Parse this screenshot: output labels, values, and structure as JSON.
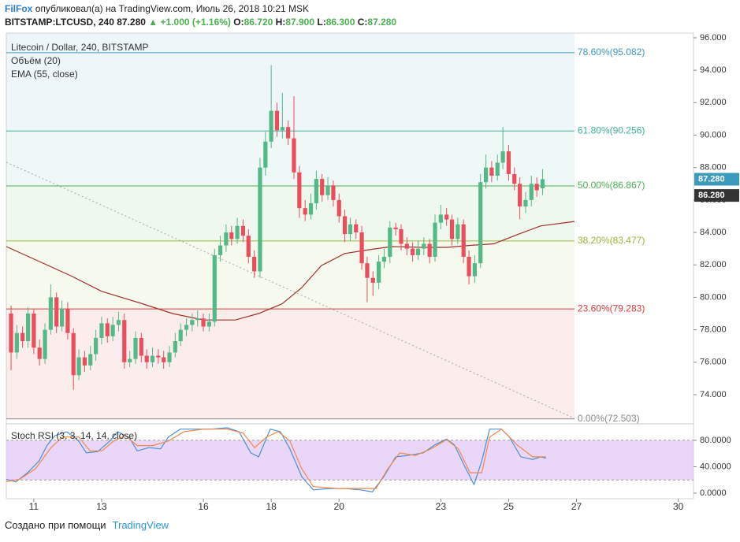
{
  "header": {
    "author": "FilFox",
    "published": "опубликовал(а) на TradingView.com, Июль 26, 2018 10:21 MSK",
    "symbol": "BITSTAMP:LTCUSD, 240",
    "last": "87.280",
    "change": "▲ +1.000 (+1.16%)",
    "ohlc": [
      {
        "label": "O:",
        "value": "86.720"
      },
      {
        "label": "H:",
        "value": "87.900"
      },
      {
        "label": "L:",
        "value": "86.300"
      },
      {
        "label": "C:",
        "value": "87.280"
      }
    ]
  },
  "chart_data": [
    {
      "type": "candlestick",
      "title": "Litecoin / Dollar, 240, BITSTAMP",
      "indicator_labels": [
        "Объём (20)"
      ],
      "up_color": "#53b987",
      "down_color": "#eb4d5c",
      "xlim": [
        10.19,
        30.45
      ],
      "ylim": [
        72.25,
        96.29
      ],
      "yticks": [
        {
          "value": 74,
          "label": "74.000"
        },
        {
          "value": 76,
          "label": "76.000"
        },
        {
          "value": 78,
          "label": "78.000"
        },
        {
          "value": 80,
          "label": "80.000"
        },
        {
          "value": 82,
          "label": "82.000"
        },
        {
          "value": 84,
          "label": "84.000"
        },
        {
          "value": 86,
          "label": "86.000"
        },
        {
          "value": 88,
          "label": "88.000"
        },
        {
          "value": 90,
          "label": "90.000"
        },
        {
          "value": 92,
          "label": "92.000"
        },
        {
          "value": 94,
          "label": "94.000"
        },
        {
          "value": 96,
          "label": "96.000"
        }
      ],
      "x": [
        10.33,
        10.5,
        10.67,
        10.83,
        11,
        11.17,
        11.33,
        11.5,
        11.67,
        11.83,
        12,
        12.17,
        12.33,
        12.5,
        12.67,
        12.83,
        13,
        13.17,
        13.33,
        13.5,
        13.67,
        13.83,
        14,
        14.17,
        14.33,
        14.5,
        14.67,
        14.83,
        15,
        15.17,
        15.33,
        15.5,
        15.67,
        15.83,
        16,
        16.17,
        16.33,
        16.5,
        16.67,
        16.83,
        17,
        17.17,
        17.33,
        17.5,
        17.67,
        17.83,
        18,
        18.17,
        18.33,
        18.5,
        18.67,
        18.83,
        19,
        19.17,
        19.33,
        19.5,
        19.67,
        19.83,
        20,
        20.17,
        20.33,
        20.5,
        20.67,
        20.83,
        21,
        21.17,
        21.33,
        21.5,
        21.67,
        21.83,
        22,
        22.17,
        22.33,
        22.5,
        22.67,
        22.83,
        23,
        23.17,
        23.33,
        23.5,
        23.67,
        23.83,
        24,
        24.17,
        24.33,
        24.5,
        24.67,
        24.83,
        25,
        25.17,
        25.33,
        25.5,
        25.67,
        25.83,
        26
      ],
      "open": [
        79.0,
        76.6,
        77.8,
        77.3,
        79.0,
        76.9,
        76.2,
        78.0,
        80.0,
        78.2,
        79.3,
        77.8,
        75.2,
        76.3,
        75.8,
        76.5,
        77.5,
        78.4,
        77.6,
        78.3,
        78.6,
        76.0,
        76.2,
        77.5,
        76.4,
        76.0,
        76.4,
        76.3,
        76.0,
        76.6,
        77.3,
        78.0,
        78.3,
        78.6,
        78.7,
        78.2,
        78.5,
        82.6,
        83.2,
        84.0,
        83.6,
        84.4,
        83.8,
        82.5,
        81.6,
        88.0,
        89.6,
        91.5,
        90.3,
        90.5,
        89.8,
        87.7,
        85.5,
        85.1,
        85.8,
        87.3,
        86.3,
        86.9,
        86.0,
        85.0,
        83.9,
        84.5,
        84.0,
        82.1,
        81.2,
        80.9,
        82.2,
        82.5,
        84.3,
        84.2,
        83.3,
        83.0,
        82.6,
        83.0,
        83.3,
        82.5,
        84.6,
        85.1,
        84.8,
        83.6,
        84.5,
        82.5,
        81.3,
        82.1,
        87.1,
        88.0,
        87.5,
        88.3,
        89.0,
        87.6,
        87.0,
        85.6,
        86.0,
        87.0,
        86.72
      ],
      "high": [
        79.5,
        78.3,
        78.2,
        79.4,
        79.3,
        77.4,
        78.4,
        80.8,
        80.3,
        79.8,
        79.7,
        78.1,
        76.8,
        76.7,
        77.0,
        78.0,
        78.8,
        78.7,
        78.8,
        79.1,
        79.0,
        76.7,
        77.9,
        77.8,
        76.8,
        76.9,
        76.8,
        76.7,
        77.0,
        77.8,
        78.4,
        78.7,
        79.0,
        79.2,
        79.0,
        79.0,
        83.0,
        83.8,
        84.5,
        84.4,
        84.9,
        84.8,
        84.2,
        82.9,
        88.6,
        90.2,
        94.3,
        92.0,
        92.6,
        90.9,
        92.4,
        88.1,
        86.0,
        86.4,
        87.8,
        87.6,
        87.4,
        87.2,
        86.4,
        85.4,
        84.9,
        84.8,
        84.4,
        82.5,
        81.6,
        82.6,
        83.0,
        84.7,
        84.6,
        84.5,
        83.7,
        83.4,
        83.5,
        83.7,
        83.6,
        85.1,
        85.7,
        85.5,
        85.1,
        84.9,
        84.8,
        82.9,
        82.6,
        87.6,
        88.8,
        88.4,
        88.8,
        90.5,
        89.4,
        88.0,
        87.4,
        86.5,
        87.5,
        87.4,
        87.9
      ],
      "low": [
        75.5,
        76.2,
        76.9,
        76.9,
        76.5,
        75.8,
        75.9,
        77.7,
        77.8,
        77.9,
        77.4,
        74.3,
        74.9,
        75.4,
        75.5,
        76.1,
        77.1,
        77.2,
        77.3,
        77.9,
        75.6,
        75.7,
        75.9,
        76.0,
        75.6,
        75.7,
        75.9,
        75.6,
        75.7,
        76.3,
        77.0,
        77.6,
        77.9,
        78.2,
        77.9,
        77.9,
        78.2,
        82.2,
        82.8,
        83.2,
        83.3,
        83.4,
        82.1,
        81.2,
        81.2,
        87.5,
        89.2,
        89.9,
        89.8,
        89.4,
        87.3,
        84.9,
        84.7,
        84.8,
        85.4,
        85.9,
        86.0,
        85.6,
        84.6,
        83.4,
        83.5,
        83.6,
        81.7,
        79.7,
        80.1,
        80.5,
        81.8,
        82.1,
        83.8,
        82.9,
        82.6,
        82.2,
        82.3,
        82.6,
        82.1,
        82.2,
        84.2,
        84.4,
        83.2,
        83.3,
        82.1,
        80.8,
        80.9,
        81.8,
        86.7,
        87.1,
        87.2,
        87.9,
        87.2,
        86.6,
        84.8,
        85.2,
        85.6,
        86.2,
        86.3
      ],
      "close": [
        76.6,
        77.8,
        77.3,
        79.0,
        76.9,
        76.2,
        78.0,
        80.0,
        78.2,
        79.3,
        77.8,
        75.2,
        76.3,
        75.8,
        76.5,
        77.5,
        78.4,
        77.6,
        78.3,
        78.6,
        76.0,
        76.2,
        77.5,
        76.4,
        76.0,
        76.4,
        76.3,
        76.0,
        76.6,
        77.3,
        78.0,
        78.3,
        78.6,
        78.7,
        78.2,
        78.5,
        82.6,
        83.2,
        84.0,
        83.6,
        84.4,
        83.8,
        82.5,
        81.6,
        88.0,
        89.6,
        91.5,
        90.3,
        90.5,
        89.8,
        87.7,
        85.5,
        85.1,
        85.8,
        87.3,
        86.3,
        86.9,
        86.0,
        85.0,
        83.9,
        84.5,
        84.0,
        82.1,
        81.2,
        80.9,
        82.2,
        82.5,
        84.3,
        84.2,
        83.3,
        83.0,
        82.6,
        83.0,
        83.3,
        82.5,
        84.6,
        85.1,
        84.8,
        83.6,
        84.5,
        82.5,
        81.3,
        82.1,
        87.1,
        88.0,
        87.5,
        88.3,
        89.0,
        87.6,
        87.0,
        85.6,
        86.0,
        87.0,
        86.6,
        87.28
      ],
      "series": [
        {
          "name": "EMA (55, close)",
          "color": "#a0302a",
          "x": [
            10.19,
            12.09,
            13.01,
            14.16,
            15.09,
            16.01,
            16.94,
            17.63,
            18.32,
            18.9,
            19.48,
            20.17,
            20.86,
            21.55,
            22.48,
            23.17,
            23.86,
            24.56,
            25.25,
            25.94,
            26.94
          ],
          "values": [
            83.13,
            81.33,
            80.36,
            79.63,
            79.0,
            78.6,
            78.6,
            79.0,
            79.6,
            80.6,
            81.96,
            82.7,
            82.93,
            83.13,
            83.08,
            83.08,
            83.2,
            83.3,
            83.86,
            84.4,
            84.68
          ]
        }
      ],
      "fibonacci": {
        "x": [
          10.19,
          26.94
        ],
        "levels": [
          {
            "label": "78.60%(95.082)",
            "value": 95.082,
            "color": "#3d98c8"
          },
          {
            "label": "61.80%(90.256)",
            "value": 90.256,
            "color": "#3fae9c"
          },
          {
            "label": "50.00%(86.867)",
            "value": 86.867,
            "color": "#4caf50"
          },
          {
            "label": "38.20%(83.477)",
            "value": 83.477,
            "color": "#99b83a"
          },
          {
            "label": "23.60%(79.283)",
            "value": 79.283,
            "color": "#d93c3c"
          },
          {
            "label": "0.00%(72.503)",
            "value": 72.503,
            "color": "#888888"
          }
        ]
      },
      "trendline": {
        "x": [
          10.19,
          26.94
        ],
        "values": [
          88.33,
          72.54
        ],
        "color": "#a8a8a8"
      },
      "price_labels": [
        {
          "value": 87.28,
          "label": "87.280",
          "color": "#3c9bbd"
        },
        {
          "value": 86.28,
          "label": "86.280",
          "color": "#333333"
        }
      ]
    },
    {
      "type": "line",
      "title": "Stoch RSI (3, 3, 14, 14, close)",
      "xlim": [
        10.19,
        30.45
      ],
      "ylim": [
        -8.4,
        102.6
      ],
      "xticks": [
        11,
        13,
        16,
        18,
        20,
        23,
        25,
        27,
        30
      ],
      "yticks": [
        {
          "value": 0,
          "label": "0.0000"
        },
        {
          "value": 40,
          "label": "40.0000"
        },
        {
          "value": 80,
          "label": "80.0000"
        }
      ],
      "band": [
        20,
        80
      ],
      "band_color": "#e6cff7",
      "series": [
        {
          "color": "#4a90d9",
          "x": [
            10.19,
            10.47,
            10.82,
            11.16,
            11.39,
            11.62,
            11.97,
            12.32,
            12.55,
            12.89,
            13.24,
            13.47,
            13.82,
            14.05,
            14.39,
            14.74,
            14.97,
            15.32,
            15.78,
            16.24,
            16.7,
            17.05,
            17.4,
            17.63,
            17.97,
            18.27,
            18.55,
            18.9,
            19.24,
            19.71,
            20.17,
            20.63,
            20.98,
            21.32,
            21.67,
            22.02,
            22.48,
            22.82,
            23.17,
            23.4,
            23.68,
            23.98,
            24.21,
            24.44,
            24.79,
            25.02,
            25.36,
            25.71,
            25.94,
            26.1
          ],
          "values": [
            21,
            17,
            31,
            49,
            72,
            87,
            93,
            79,
            61,
            63,
            79,
            93,
            84,
            64,
            69,
            67,
            85,
            97,
            97,
            97,
            99,
            93,
            61,
            55,
            97,
            93,
            67,
            25,
            5,
            7,
            7,
            5,
            2,
            25,
            55,
            57,
            61,
            73,
            82,
            73,
            43,
            13,
            49,
            97,
            97,
            85,
            55,
            51,
            55,
            53
          ]
        },
        {
          "color": "#f08a4b",
          "x": [
            10.19,
            10.58,
            11.05,
            11.51,
            11.85,
            12.32,
            12.66,
            13.01,
            13.36,
            13.7,
            14.05,
            14.51,
            14.97,
            15.43,
            16.01,
            16.7,
            17.17,
            17.51,
            17.86,
            18.21,
            18.55,
            18.9,
            19.24,
            19.94,
            20.63,
            21.09,
            21.44,
            21.79,
            22.25,
            22.71,
            23.17,
            23.52,
            23.86,
            24.21,
            24.44,
            24.79,
            25.25,
            25.71,
            26.1
          ],
          "values": [
            17,
            21,
            37,
            69,
            85,
            85,
            64,
            64,
            79,
            87,
            72,
            72,
            79,
            93,
            97,
            97,
            91,
            69,
            85,
            93,
            79,
            37,
            10,
            7,
            7,
            7,
            37,
            61,
            57,
            67,
            81,
            67,
            31,
            31,
            85,
            97,
            73,
            55,
            55
          ]
        }
      ]
    }
  ],
  "footer": {
    "made_with": "Создано при помощи",
    "brand": "TradingView"
  }
}
